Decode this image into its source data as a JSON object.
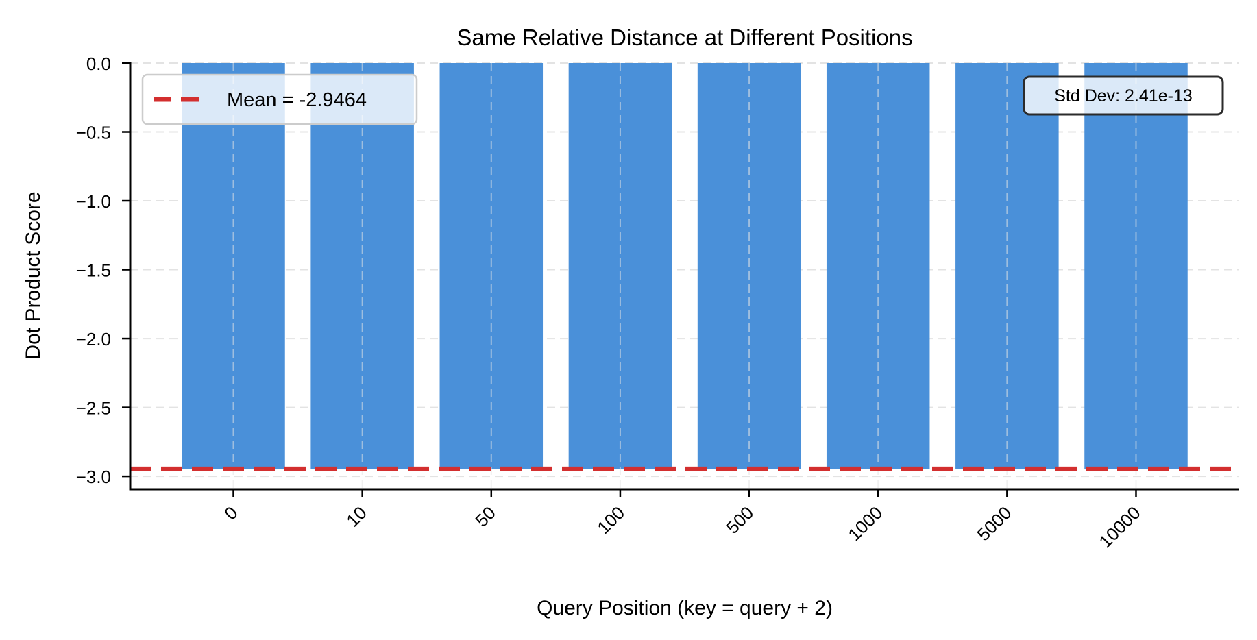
{
  "chart_data": {
    "type": "bar",
    "title": "Same Relative Distance at Different Positions",
    "xlabel": "Query Position (key = query + 2)",
    "ylabel": "Dot Product Score",
    "categories": [
      "0",
      "10",
      "50",
      "100",
      "500",
      "1000",
      "5000",
      "10000"
    ],
    "values": [
      -2.9464,
      -2.9464,
      -2.9464,
      -2.9464,
      -2.9464,
      -2.9464,
      -2.9464,
      -2.9464
    ],
    "ylim": [
      -3.094,
      0.0
    ],
    "xlim": [
      -0.8,
      7.8
    ],
    "bar_width": 0.8,
    "yticks": [
      0.0,
      -0.5,
      -1.0,
      -1.5,
      -2.0,
      -2.5,
      -3.0
    ],
    "ytick_labels": [
      "0.0",
      "−0.5",
      "−1.0",
      "−1.5",
      "−2.0",
      "−2.5",
      "−3.0"
    ],
    "xtick_rotation": -45,
    "grid": true,
    "reference_line": {
      "type": "hline",
      "y": -2.9464,
      "style": "dashed",
      "label": "Mean = -2.9464"
    },
    "legend": {
      "position": "upper left",
      "entries": [
        "Mean = -2.9464"
      ]
    },
    "annotations": [
      {
        "text": "Std Dev: 2.41e-13",
        "position": "upper right"
      }
    ]
  },
  "colors": {
    "bar": "#4a90d9",
    "mean_line": "#d32f2f",
    "grid": "#e3e3e3",
    "axis": "#000000",
    "legend_border": "#cccccc",
    "annotation_border": "#2b2b2b"
  },
  "legend_label": "Mean = -2.9464",
  "annotation_label": "Std Dev: 2.41e-13"
}
